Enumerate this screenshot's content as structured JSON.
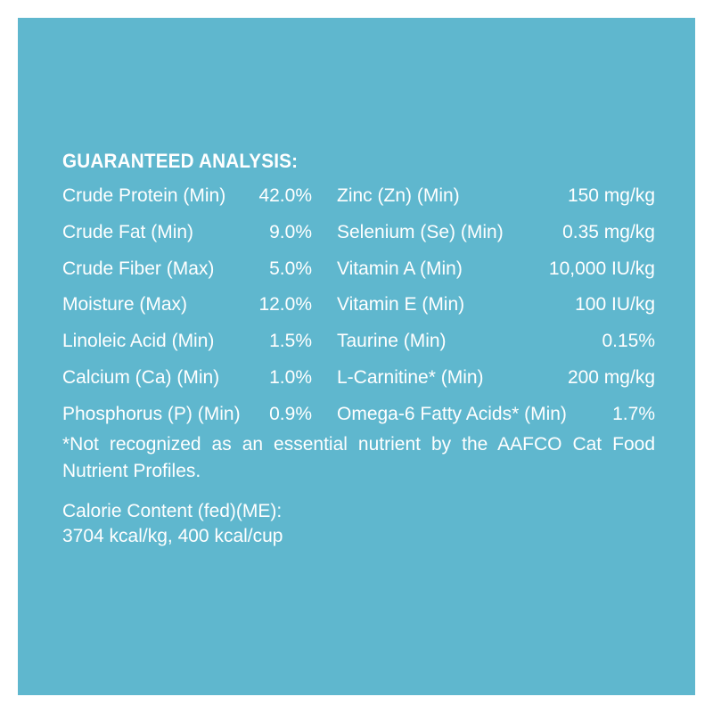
{
  "heading": "GUARANTEED ANALYSIS:",
  "left_items": [
    {
      "label": "Crude Protein (Min)",
      "value": "42.0%"
    },
    {
      "label": "Crude Fat (Min)",
      "value": "9.0%"
    },
    {
      "label": "Crude Fiber (Max)",
      "value": "5.0%"
    },
    {
      "label": "Moisture (Max)",
      "value": "12.0%"
    },
    {
      "label": "Linoleic Acid (Min)",
      "value": "1.5%"
    },
    {
      "label": "Calcium (Ca) (Min)",
      "value": "1.0%"
    },
    {
      "label": "Phosphorus (P) (Min)",
      "value": "0.9%"
    }
  ],
  "right_items": [
    {
      "label": "Zinc (Zn) (Min)",
      "value": "150 mg/kg"
    },
    {
      "label": "Selenium (Se) (Min)",
      "value": "0.35 mg/kg"
    },
    {
      "label": "Vitamin A (Min)",
      "value": "10,000 IU/kg"
    },
    {
      "label": "Vitamin E (Min)",
      "value": "100 IU/kg"
    },
    {
      "label": "Taurine (Min)",
      "value": "0.15%"
    },
    {
      "label": "L-Carnitine* (Min)",
      "value": "200 mg/kg"
    },
    {
      "label": "Omega-6 Fatty Acids* (Min)",
      "value": "1.7%"
    }
  ],
  "footnote": "*Not recognized as an essential nutrient by the AAFCO Cat Food Nutrient Profiles.",
  "calorie_title": "Calorie Content (fed)(ME):",
  "calorie_value": "3704 kcal/kg, 400 kcal/cup",
  "colors": {
    "panel": "#5fb7ce",
    "text": "#ffffff",
    "border": "#ffffff"
  }
}
